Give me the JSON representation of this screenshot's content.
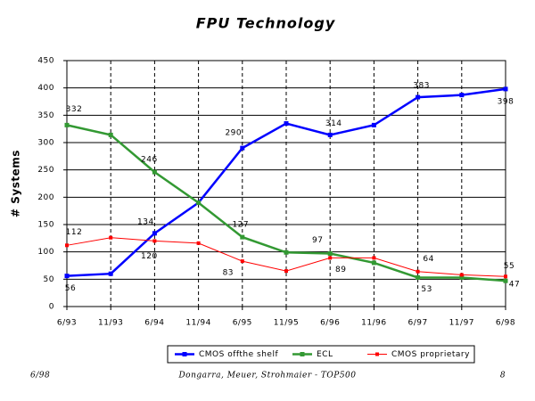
{
  "chart_data": {
    "type": "line",
    "title": "FPU Technology",
    "y_label": "# Systems",
    "categories": [
      "6/93",
      "11/93",
      "6/94",
      "11/94",
      "6/95",
      "11/95",
      "6/96",
      "11/96",
      "6/97",
      "11/97",
      "6/98"
    ],
    "series": [
      {
        "name": "CMOS offthe shelf",
        "color": "#0000ff",
        "values": [
          56,
          60,
          134,
          190,
          290,
          335,
          314,
          332,
          383,
          387,
          398
        ],
        "value_labels": [
          "56",
          null,
          "134",
          null,
          "290",
          null,
          "314",
          null,
          "383",
          null,
          "398"
        ]
      },
      {
        "name": "ECL",
        "color": "#339933",
        "values": [
          332,
          314,
          246,
          190,
          127,
          99,
          97,
          80,
          53,
          53,
          47
        ],
        "value_labels": [
          "332",
          null,
          "246",
          null,
          "127",
          null,
          "97",
          null,
          "53",
          null,
          "47"
        ]
      },
      {
        "name": "CMOS proprietary",
        "color": "#ff0000",
        "values": [
          112,
          126,
          120,
          116,
          83,
          65,
          89,
          89,
          64,
          58,
          55
        ],
        "value_labels": [
          "112",
          null,
          "120",
          null,
          "83",
          null,
          "89",
          null,
          "64",
          null,
          "55"
        ]
      }
    ],
    "ylim": [
      0,
      450
    ],
    "yticks": [
      0,
      50,
      100,
      150,
      200,
      250,
      300,
      350,
      400,
      450
    ],
    "grid": true,
    "legend": "bottom"
  },
  "footer": {
    "date": "6/98",
    "credit": "Dongarra, Meuer, Strohmaier - TOP500",
    "page": "8"
  }
}
